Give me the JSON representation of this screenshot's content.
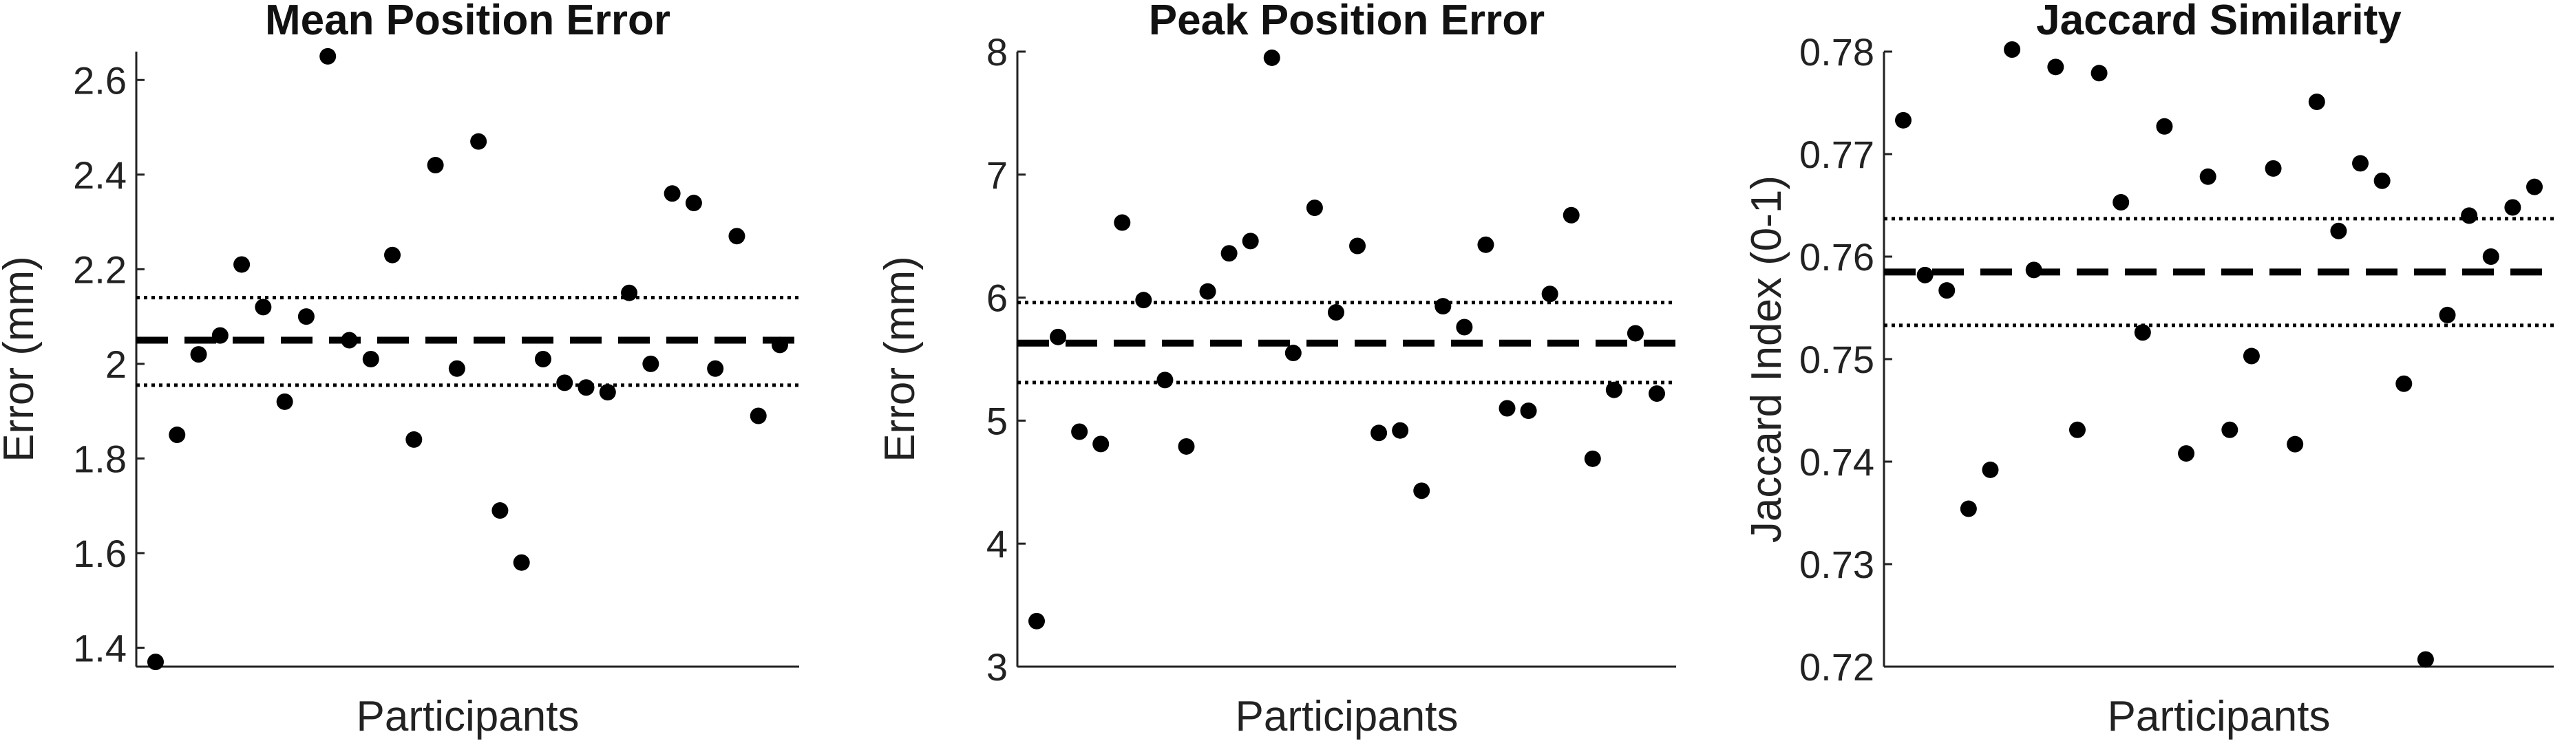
{
  "chart_data": [
    {
      "type": "scatter",
      "title": "Mean Position Error",
      "xlabel": "Participants",
      "ylabel": "Error (mm)",
      "ylim": [
        1.36,
        2.66
      ],
      "yticks": [
        1.4,
        1.6,
        1.8,
        2,
        2.2,
        2.4,
        2.6
      ],
      "ytick_labels": [
        "1.4",
        "1.6",
        "1.8",
        "2",
        "2.2",
        "2.4",
        "2.6"
      ],
      "x": [
        1,
        2,
        3,
        4,
        5,
        6,
        7,
        8,
        9,
        10,
        11,
        12,
        13,
        14,
        15,
        16,
        17,
        18,
        19,
        20,
        21,
        22,
        23,
        24,
        25,
        26,
        27,
        28,
        29,
        30
      ],
      "values": [
        1.37,
        1.85,
        2.02,
        2.06,
        2.21,
        2.12,
        1.92,
        2.1,
        2.65,
        2.05,
        2.01,
        2.23,
        1.84,
        2.42,
        1.99,
        2.47,
        1.69,
        1.58,
        2.01,
        1.96,
        1.95,
        1.94,
        2.15,
        2.0,
        2.36,
        2.34,
        1.99,
        2.27,
        1.89,
        2.04
      ],
      "mean": 2.05,
      "ci": [
        1.955,
        2.14
      ],
      "grid": false
    },
    {
      "type": "scatter",
      "title": "Peak Position Error",
      "xlabel": "Participants",
      "ylabel": "Error (mm)",
      "ylim": [
        3,
        8
      ],
      "yticks": [
        3,
        4,
        5,
        6,
        7,
        8
      ],
      "ytick_labels": [
        "3",
        "4",
        "5",
        "6",
        "7",
        "8"
      ],
      "x": [
        1,
        2,
        3,
        4,
        5,
        6,
        7,
        8,
        9,
        10,
        11,
        12,
        13,
        14,
        15,
        16,
        17,
        18,
        19,
        20,
        21,
        22,
        23,
        24,
        25,
        26,
        27,
        28,
        29,
        30
      ],
      "values": [
        3.37,
        5.68,
        4.91,
        4.81,
        6.61,
        5.98,
        5.33,
        4.79,
        6.05,
        6.36,
        6.46,
        7.95,
        5.55,
        6.73,
        5.88,
        6.42,
        4.9,
        4.92,
        4.43,
        5.93,
        5.76,
        6.43,
        5.1,
        5.08,
        6.03,
        6.67,
        4.69,
        5.25,
        5.71,
        5.22
      ],
      "mean": 5.63,
      "ci": [
        5.31,
        5.96
      ],
      "grid": false
    },
    {
      "type": "scatter",
      "title": "Jaccard Similarity",
      "xlabel": "Participants",
      "ylabel": "Jaccard Index (0-1)",
      "ylim": [
        0.72,
        0.78
      ],
      "yticks": [
        0.72,
        0.73,
        0.74,
        0.75,
        0.76,
        0.77,
        0.78
      ],
      "ytick_labels": [
        "0.72",
        "0.73",
        "0.74",
        "0.75",
        "0.76",
        "0.77",
        "0.78"
      ],
      "x": [
        1,
        2,
        3,
        4,
        5,
        6,
        7,
        8,
        9,
        10,
        11,
        12,
        13,
        14,
        15,
        16,
        17,
        18,
        19,
        20,
        21,
        22,
        23,
        24,
        25,
        26,
        27,
        28,
        29,
        30
      ],
      "values": [
        0.7733,
        0.7582,
        0.7567,
        0.7354,
        0.7392,
        0.7802,
        0.7587,
        0.7785,
        0.7431,
        0.7779,
        0.7653,
        0.7526,
        0.7727,
        0.7408,
        0.7678,
        0.7431,
        0.7503,
        0.7686,
        0.7417,
        0.7751,
        0.7625,
        0.7691,
        0.7674,
        0.7476,
        0.7207,
        0.7543,
        0.764,
        0.76,
        0.7648,
        0.7668
      ],
      "mean": 0.7585,
      "ci": [
        0.7533,
        0.7637
      ],
      "grid": false
    }
  ]
}
